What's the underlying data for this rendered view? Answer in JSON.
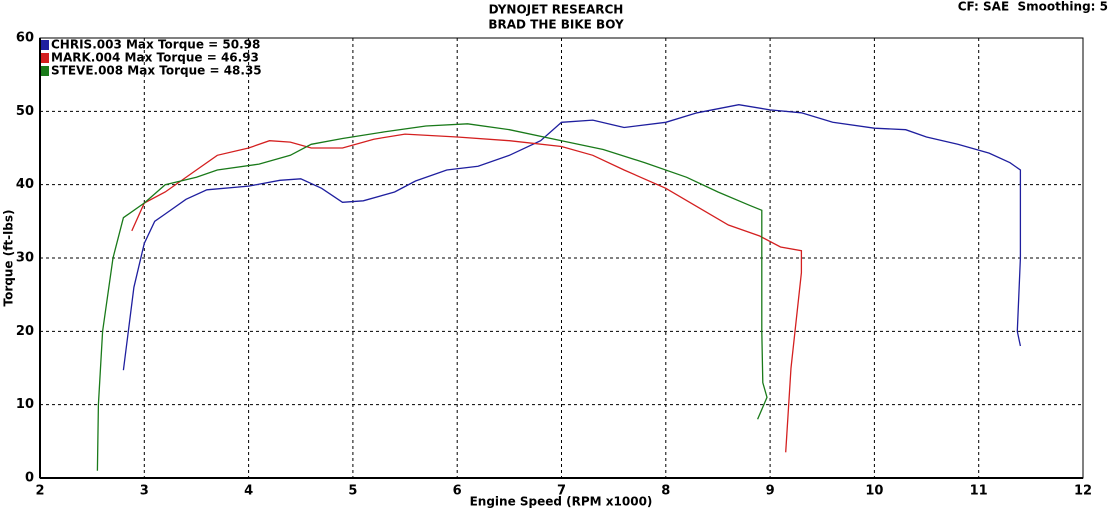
{
  "chart_data": {
    "type": "line",
    "title": "DYNOJET RESEARCH",
    "subtitle": "BRAD THE BIKE BOY",
    "annotation": "CF: SAE  Smoothing: 5",
    "x_label": "Engine Speed (RPM x1000)",
    "y_label": "Torque (ft-lbs)",
    "xlim": [
      2,
      12
    ],
    "xticks": [
      2,
      3,
      4,
      5,
      6,
      7,
      8,
      9,
      10,
      11,
      12
    ],
    "ylim": [
      0,
      60
    ],
    "yticks": [
      0,
      10,
      20,
      30,
      40,
      50,
      60
    ],
    "grid": true,
    "legend": "top-left",
    "series": [
      {
        "name": "CHRIS.003 Max Torque = 50.98",
        "color": "#1f1f9f",
        "x": [
          2.8,
          2.9,
          3.0,
          3.1,
          3.2,
          3.4,
          3.6,
          4.0,
          4.3,
          4.5,
          4.7,
          4.9,
          5.1,
          5.4,
          5.6,
          5.9,
          6.2,
          6.5,
          6.8,
          7.0,
          7.3,
          7.6,
          8.0,
          8.3,
          8.7,
          9.0,
          9.3,
          9.6,
          10.0,
          10.3,
          10.5,
          10.8,
          11.1,
          11.3,
          11.4,
          11.4,
          11.37,
          11.4
        ],
        "values": [
          14.7,
          26,
          32,
          35,
          36,
          38,
          39.3,
          39.8,
          40.6,
          40.8,
          39.5,
          37.6,
          37.8,
          39,
          40.5,
          42,
          42.5,
          44,
          46,
          48.5,
          48.8,
          47.8,
          48.5,
          49.8,
          50.9,
          50.2,
          49.8,
          48.5,
          47.7,
          47.5,
          46.5,
          45.5,
          44.3,
          43,
          42,
          30,
          20,
          18
        ]
      },
      {
        "name": "MARK.004 Max Torque = 46.93",
        "color": "#d42020",
        "x": [
          2.88,
          3.0,
          3.2,
          3.5,
          3.7,
          4.0,
          4.2,
          4.4,
          4.6,
          4.9,
          5.2,
          5.5,
          6.0,
          6.5,
          7.0,
          7.3,
          7.6,
          8.0,
          8.3,
          8.6,
          8.9,
          9.1,
          9.3,
          9.3,
          9.2,
          9.15
        ],
        "values": [
          33.7,
          37.5,
          39,
          42,
          44,
          45,
          46,
          45.8,
          45,
          45,
          46.2,
          46.9,
          46.5,
          46,
          45.2,
          44,
          42,
          39.5,
          37,
          34.5,
          33,
          31.5,
          31,
          28,
          15,
          3.5
        ]
      },
      {
        "name": "STEVE.008 Max Torque = 48.35",
        "color": "#1a7a1a",
        "x": [
          2.55,
          2.56,
          2.6,
          2.7,
          2.8,
          3.0,
          3.2,
          3.5,
          3.7,
          4.1,
          4.4,
          4.6,
          4.9,
          5.3,
          5.7,
          6.1,
          6.5,
          7.0,
          7.4,
          7.8,
          8.2,
          8.5,
          8.8,
          8.92,
          8.92,
          8.92,
          8.93,
          8.97,
          8.88
        ],
        "values": [
          1,
          10,
          20,
          30,
          35.5,
          37.5,
          40,
          41,
          42,
          42.8,
          44,
          45.5,
          46.3,
          47.2,
          48,
          48.3,
          47.5,
          46,
          44.8,
          43,
          41,
          39,
          37.2,
          36.5,
          30,
          20,
          13,
          11,
          8
        ]
      }
    ]
  }
}
